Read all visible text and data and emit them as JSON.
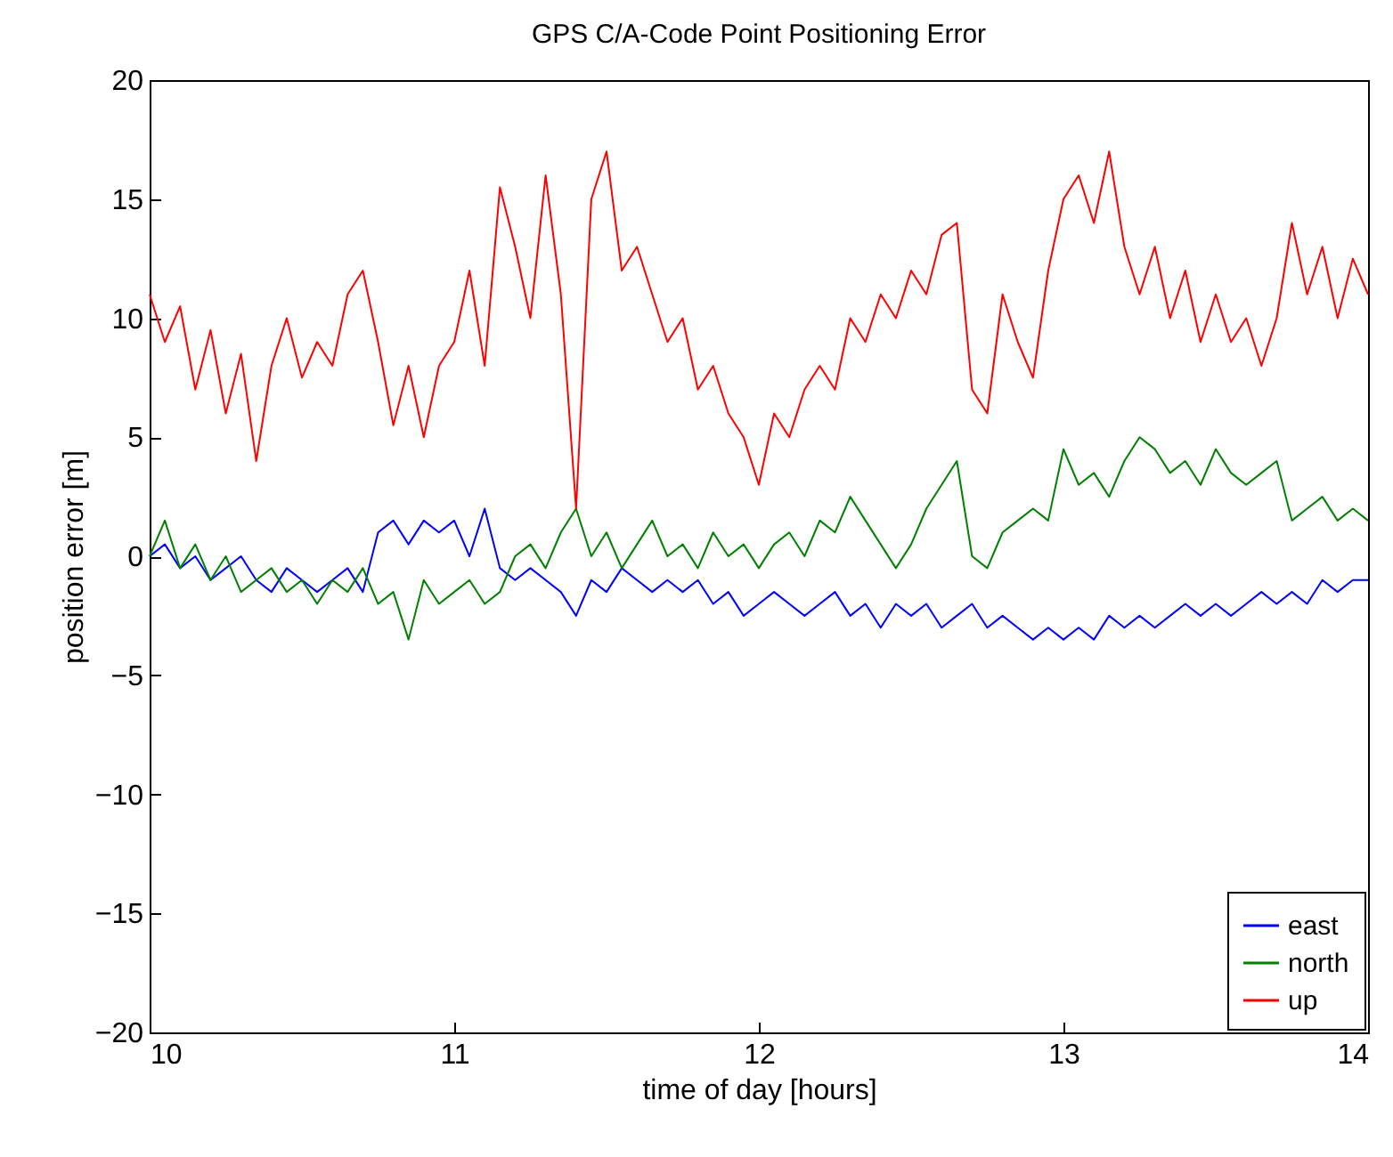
{
  "chart_data": {
    "type": "line",
    "title": "GPS C/A-Code Point Positioning Error",
    "xlabel": "time of day [hours]",
    "ylabel": "position error [m]",
    "x": [
      10,
      10.05,
      10.1,
      10.15,
      10.2,
      10.25,
      10.3,
      10.35,
      10.4,
      10.45,
      10.5,
      10.55,
      10.6,
      10.65,
      10.7,
      10.75,
      10.8,
      10.85,
      10.9,
      10.95,
      11,
      11.05,
      11.1,
      11.15,
      11.2,
      11.25,
      11.3,
      11.35,
      11.4,
      11.45,
      11.5,
      11.55,
      11.6,
      11.65,
      11.7,
      11.75,
      11.8,
      11.85,
      11.9,
      11.95,
      12,
      12.05,
      12.1,
      12.15,
      12.2,
      12.25,
      12.3,
      12.35,
      12.4,
      12.45,
      12.5,
      12.55,
      12.6,
      12.65,
      12.7,
      12.75,
      12.8,
      12.85,
      12.9,
      12.95,
      13,
      13.05,
      13.1,
      13.15,
      13.2,
      13.25,
      13.3,
      13.35,
      13.4,
      13.45,
      13.5,
      13.55,
      13.6,
      13.65,
      13.7,
      13.75,
      13.8,
      13.85,
      13.9,
      13.95,
      14
    ],
    "series": [
      {
        "name": "east",
        "color": "#0000ff",
        "values": [
          0,
          0.5,
          -0.5,
          0,
          -1,
          -0.5,
          0,
          -1,
          -1.5,
          -0.5,
          -1,
          -1.5,
          -1,
          -0.5,
          -1.5,
          1,
          1.5,
          0.5,
          1.5,
          1,
          1.5,
          0,
          2,
          -0.5,
          -1,
          -0.5,
          -1,
          -1.5,
          -2.5,
          -1,
          -1.5,
          -0.5,
          -1,
          -1.5,
          -1,
          -1.5,
          -1,
          -2,
          -1.5,
          -2.5,
          -2,
          -1.5,
          -2,
          -2.5,
          -2,
          -1.5,
          -2.5,
          -2,
          -3,
          -2,
          -2.5,
          -2,
          -3,
          -2.5,
          -2,
          -3,
          -2.5,
          -3,
          -3.5,
          -3,
          -3.5,
          -3,
          -3.5,
          -2.5,
          -3,
          -2.5,
          -3,
          -2.5,
          -2,
          -2.5,
          -2,
          -2.5,
          -2,
          -1.5,
          -2,
          -1.5,
          -2,
          -1,
          -1.5,
          -1,
          -1
        ]
      },
      {
        "name": "north",
        "color": "#008000",
        "values": [
          0,
          1.5,
          -0.5,
          0.5,
          -1,
          0,
          -1.5,
          -1,
          -0.5,
          -1.5,
          -1,
          -2,
          -1,
          -1.5,
          -0.5,
          -2,
          -1.5,
          -3.5,
          -1,
          -2,
          -1.5,
          -1,
          -2,
          -1.5,
          0,
          0.5,
          -0.5,
          1,
          2,
          0,
          1,
          -0.5,
          0.5,
          1.5,
          0,
          0.5,
          -0.5,
          1,
          0,
          0.5,
          -0.5,
          0.5,
          1,
          0,
          1.5,
          1,
          2.5,
          1.5,
          0.5,
          -0.5,
          0.5,
          2,
          3,
          4,
          0,
          -0.5,
          1,
          1.5,
          2,
          1.5,
          4.5,
          3,
          3.5,
          2.5,
          4,
          5,
          4.5,
          3.5,
          4,
          3,
          4.5,
          3.5,
          3,
          3.5,
          4,
          1.5,
          2,
          2.5,
          1.5,
          2,
          1.5
        ]
      },
      {
        "name": "up",
        "color": "#ff0000",
        "values": [
          11,
          9,
          10.5,
          7,
          9.5,
          6,
          8.5,
          4,
          8,
          10,
          7.5,
          9,
          8,
          11,
          12,
          9,
          5.5,
          8,
          5,
          8,
          9,
          12,
          8,
          15.5,
          13,
          10,
          16,
          11,
          2,
          15,
          17,
          12,
          13,
          11,
          9,
          10,
          7,
          8,
          6,
          5,
          3,
          6,
          5,
          7,
          8,
          7,
          10,
          9,
          11,
          10,
          12,
          11,
          13.5,
          14,
          7,
          6,
          11,
          9,
          7.5,
          12,
          15,
          16,
          14,
          17,
          13,
          11,
          13,
          10,
          12,
          9,
          11,
          9,
          10,
          8,
          10,
          14,
          11,
          13,
          10,
          12.5,
          11
        ]
      }
    ],
    "xlim": [
      10,
      14
    ],
    "xticks": [
      10,
      11,
      12,
      13,
      14
    ],
    "ylim": [
      -20,
      20
    ],
    "yticks": [
      -20,
      -15,
      -10,
      -5,
      0,
      5,
      10,
      15,
      20
    ],
    "legend": "bottom right"
  }
}
